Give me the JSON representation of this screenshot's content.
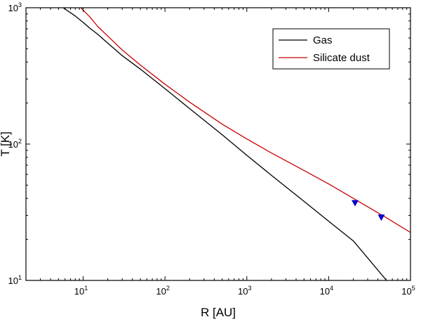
{
  "chart_data": {
    "type": "line",
    "xlabel": "R [AU]",
    "ylabel": "T [K]",
    "xscale": "log",
    "yscale": "log",
    "xlim": [
      2,
      100000
    ],
    "ylim": [
      10,
      1000
    ],
    "x_ticks": [
      {
        "base": "10",
        "exp": "1",
        "value": 10
      },
      {
        "base": "10",
        "exp": "2",
        "value": 100
      },
      {
        "base": "10",
        "exp": "3",
        "value": 1000
      },
      {
        "base": "10",
        "exp": "4",
        "value": 10000
      },
      {
        "base": "10",
        "exp": "5",
        "value": 100000
      }
    ],
    "y_ticks": [
      {
        "base": "10",
        "exp": "1",
        "value": 10
      },
      {
        "base": "10",
        "exp": "2",
        "value": 100
      },
      {
        "base": "10",
        "exp": "3",
        "value": 1000
      }
    ],
    "legend_position": "top-right",
    "grid": false,
    "series": [
      {
        "name": "Gas",
        "color": "#000000",
        "x": [
          5.7,
          8,
          10,
          12,
          15,
          20,
          30,
          50,
          100,
          200,
          500,
          1000,
          2000,
          5000,
          10000,
          20000,
          51000
        ],
        "y": [
          1000,
          870,
          780,
          710,
          640,
          550,
          445,
          355,
          255,
          182,
          117,
          82.7,
          59,
          38,
          27.2,
          19.5,
          10
        ]
      },
      {
        "name": "Silicate dust",
        "color": "#cc0000",
        "x": [
          9.4,
          10,
          12,
          15,
          20,
          30,
          50,
          100,
          200,
          500,
          1000,
          2000,
          5000,
          10000,
          20000,
          50000,
          100000
        ],
        "y": [
          1000,
          960,
          860,
          730,
          620,
          490,
          380,
          275,
          203,
          140,
          109,
          86,
          64,
          51,
          40,
          29,
          22.5
        ]
      }
    ],
    "markers": [
      {
        "x": 21000,
        "y": 37,
        "color": "#0000cc",
        "shape": "triangle-down"
      },
      {
        "x": 44000,
        "y": 29,
        "color": "#0000cc",
        "shape": "triangle-down"
      }
    ]
  }
}
